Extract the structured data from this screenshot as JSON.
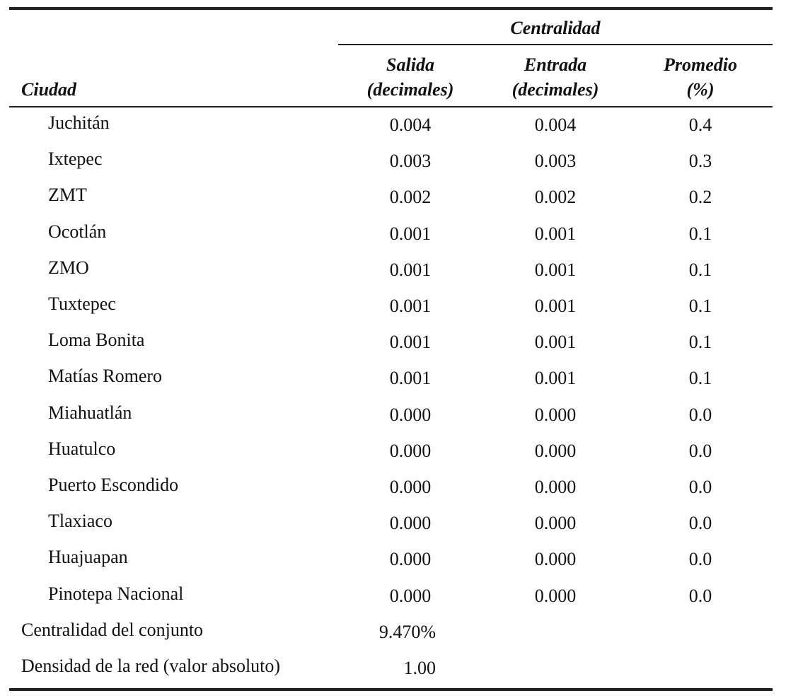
{
  "table": {
    "group_header": "Centralidad",
    "columns": [
      [
        "Ciudad"
      ],
      [
        "Salida",
        "(decimales)"
      ],
      [
        "Entrada",
        "(decimales)"
      ],
      [
        "Promedio",
        "(%)"
      ]
    ],
    "rows": [
      [
        "Juchitán",
        "0.004",
        "0.004",
        "0.4"
      ],
      [
        "Ixtepec",
        "0.003",
        "0.003",
        "0.3"
      ],
      [
        "ZMT",
        "0.002",
        "0.002",
        "0.2"
      ],
      [
        "Ocotlán",
        "0.001",
        "0.001",
        "0.1"
      ],
      [
        "ZMO",
        "0.001",
        "0.001",
        "0.1"
      ],
      [
        "Tuxtepec",
        "0.001",
        "0.001",
        "0.1"
      ],
      [
        "Loma Bonita",
        "0.001",
        "0.001",
        "0.1"
      ],
      [
        "Matías Romero",
        "0.001",
        "0.001",
        "0.1"
      ],
      [
        "Miahuatlán",
        "0.000",
        "0.000",
        "0.0"
      ],
      [
        "Huatulco",
        "0.000",
        "0.000",
        "0.0"
      ],
      [
        "Puerto Escondido",
        "0.000",
        "0.000",
        "0.0"
      ],
      [
        "Tlaxiaco",
        "0.000",
        "0.000",
        "0.0"
      ],
      [
        "Huajuapan",
        "0.000",
        "0.000",
        "0.0"
      ],
      [
        "Pinotepa Nacional",
        "0.000",
        "0.000",
        "0.0"
      ]
    ],
    "summary": [
      [
        "Centralidad del conjunto",
        "9.470%"
      ],
      [
        "Densidad de la red (valor absoluto)",
        "1.00"
      ]
    ]
  }
}
